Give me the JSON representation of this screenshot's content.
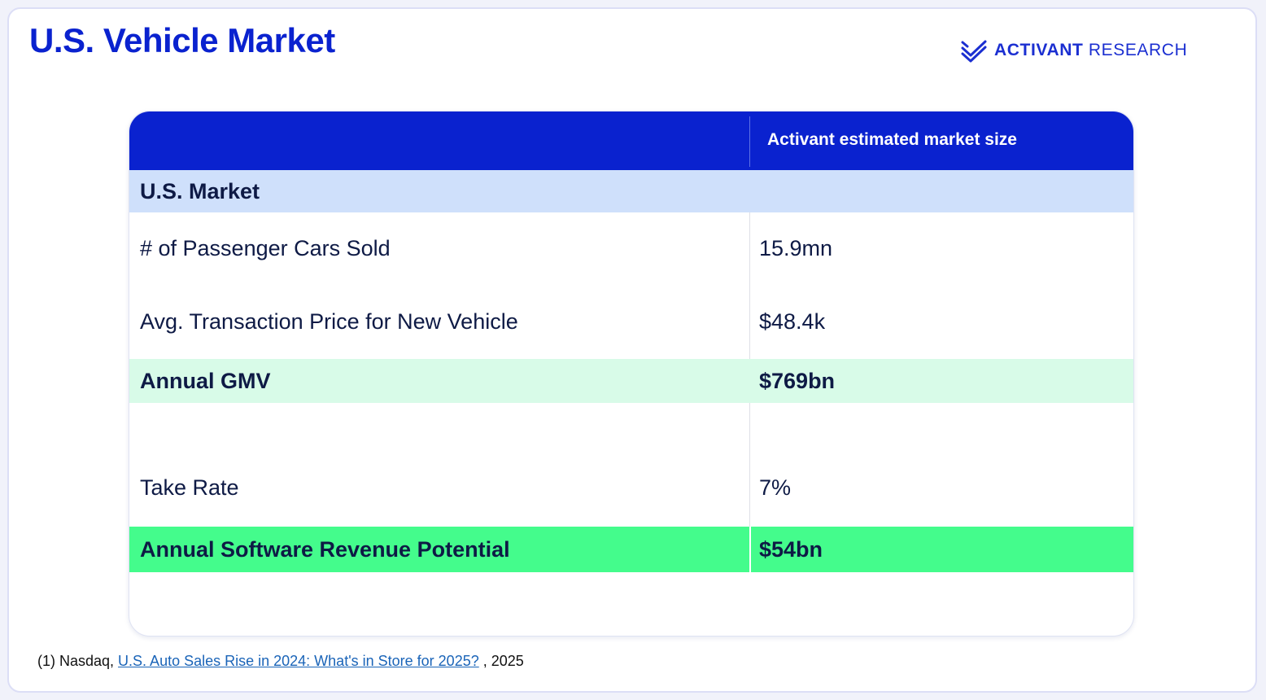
{
  "header": {
    "title": "U.S. Vehicle Market",
    "brand": {
      "name": "ACTIVANT",
      "suffix": "RESEARCH",
      "logo_icon": "activant-chevrons-icon",
      "color": "#1b2fd1"
    }
  },
  "table": {
    "column_header": "Activant estimated market size",
    "section_label": "U.S. Market",
    "rows": [
      {
        "label": "# of Passenger Cars Sold",
        "value": "15.9mn"
      },
      {
        "label": "Avg. Transaction Price for New Vehicle",
        "value": "$48.4k"
      },
      {
        "label": "Annual GMV",
        "value": "$769bn"
      },
      {
        "label": "",
        "value": ""
      },
      {
        "label": "Take Rate",
        "value": "7%"
      },
      {
        "label": "Annual Software Revenue Potential",
        "value": "$54bn"
      }
    ]
  },
  "footnote": {
    "prefix": "(1) Nasdaq, ",
    "link_text": "U.S. Auto Sales Rise in 2024: What's in Store for 2025?",
    "suffix": " , 2025"
  },
  "colors": {
    "title_blue": "#0a22cf",
    "header_bg": "#0a22cf",
    "section_bg": "#cfe0fb",
    "gmv_bg": "#d8fbe8",
    "revenue_bg": "#44fc8c",
    "link": "#1a64b8"
  }
}
